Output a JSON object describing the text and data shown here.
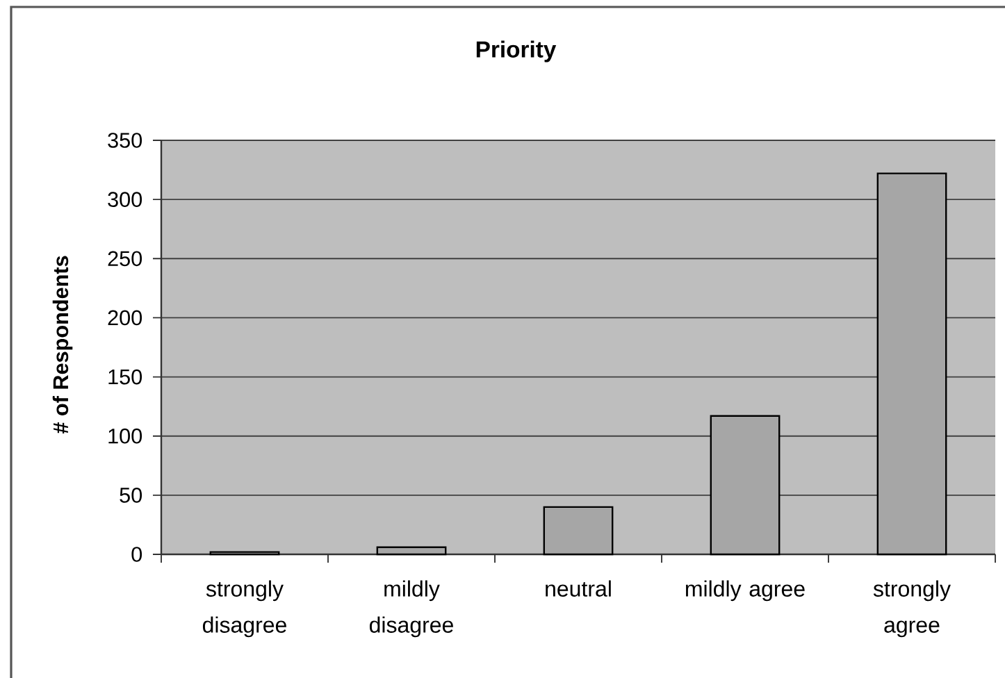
{
  "chart_data": {
    "type": "bar",
    "title": "Priority",
    "ylabel": "# of Respondents",
    "categories": [
      "strongly disagree",
      "mildly disagree",
      "neutral",
      "mildly agree",
      "strongly agree"
    ],
    "values": [
      2,
      6,
      40,
      117,
      322
    ],
    "color": "#a6a6a6",
    "ylim": [
      0,
      350
    ],
    "yticks": [
      0,
      50,
      100,
      150,
      200,
      250,
      300,
      350
    ],
    "grid": "y"
  }
}
